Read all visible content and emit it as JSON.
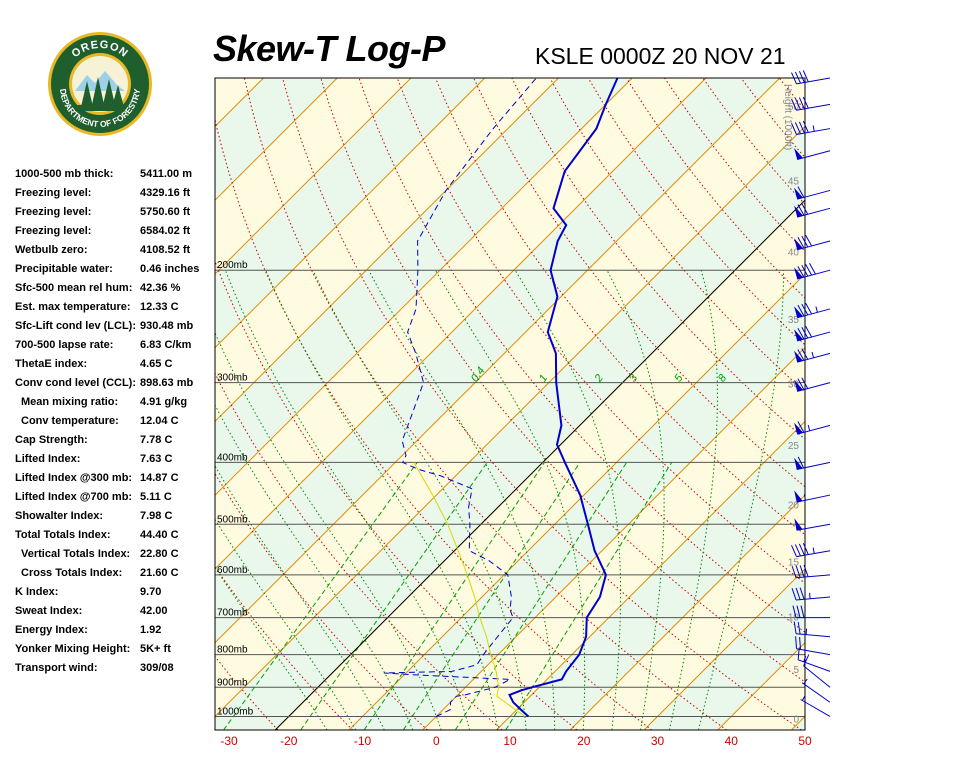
{
  "header": {
    "title": "Skew-T Log-P",
    "subtitle": "KSLE 0000Z 20 NOV 21"
  },
  "logo": {
    "top_text": "OREGON",
    "bottom_text": "DEPARTMENT OF FORESTRY",
    "colors": {
      "ring": "#1f5f2e",
      "gold": "#e8b923",
      "tree": "#1f5f2e",
      "sky": "#9fd0ea"
    }
  },
  "indices": [
    {
      "label": "1000-500 mb thick:",
      "value": "5411.00 m"
    },
    {
      "label": "Freezing level:",
      "value": "4329.16 ft"
    },
    {
      "label": "Freezing level:",
      "value": "5750.60 ft"
    },
    {
      "label": "Freezing level:",
      "value": "6584.02 ft"
    },
    {
      "label": "Wetbulb zero:",
      "value": "4108.52 ft"
    },
    {
      "label": "Precipitable water:",
      "value": "0.46 inches"
    },
    {
      "label": "Sfc-500 mean rel hum:",
      "value": "42.36 %"
    },
    {
      "label": "Est. max temperature:",
      "value": "12.33 C"
    },
    {
      "label": "Sfc-Lift cond lev (LCL):",
      "value": "930.48 mb"
    },
    {
      "label": "700-500 lapse rate:",
      "value": "6.83 C/km"
    },
    {
      "label": "ThetaE index:",
      "value": "4.65 C"
    },
    {
      "label": "Conv cond level (CCL):",
      "value": "898.63 mb"
    },
    {
      "label": "Mean mixing ratio:",
      "value": "4.91 g/kg",
      "sub": true
    },
    {
      "label": "Conv temperature:",
      "value": "12.04 C",
      "sub": true
    },
    {
      "label": "Cap Strength:",
      "value": "7.78 C"
    },
    {
      "label": "Lifted Index:",
      "value": "7.63 C"
    },
    {
      "label": "Lifted Index @300 mb:",
      "value": "14.87 C"
    },
    {
      "label": "Lifted Index @700 mb:",
      "value": "5.11 C"
    },
    {
      "label": "Showalter Index:",
      "value": "7.98 C"
    },
    {
      "label": "Total Totals Index:",
      "value": "44.40 C"
    },
    {
      "label": "Vertical Totals Index:",
      "value": "22.80 C",
      "sub": true
    },
    {
      "label": "Cross Totals Index:",
      "value": "21.60 C",
      "sub": true
    },
    {
      "label": "K Index:",
      "value": "9.70"
    },
    {
      "label": "Sweat Index:",
      "value": "42.00"
    },
    {
      "label": "Energy Index:",
      "value": "1.92"
    },
    {
      "label": "Yonker Mixing Height:",
      "value": "5K+ ft"
    },
    {
      "label": "Transport wind:",
      "value": "309/08"
    }
  ],
  "chart_data": {
    "type": "line",
    "chart_kind": "skew-t log-p",
    "x_axis": {
      "unit": "C",
      "ticks": [
        -30,
        -20,
        -10,
        0,
        10,
        20,
        30,
        40,
        50
      ],
      "range": [
        -30,
        50
      ]
    },
    "y_axis": {
      "scale": "log",
      "range_mb": [
        1050,
        100
      ],
      "pressure_labels": [
        "200mb",
        "300mb",
        "400mb",
        "500mb",
        "600mb",
        "700mb",
        "800mb",
        "900mb",
        "1000mb"
      ],
      "pressure_values": [
        200,
        300,
        400,
        500,
        600,
        700,
        800,
        900,
        1000
      ]
    },
    "height_axis": {
      "label": "Height (1000ft)",
      "ticks": [
        0,
        5,
        10,
        15,
        20,
        25,
        30,
        35,
        40,
        45,
        50
      ],
      "side": "right"
    },
    "mixing_ratio_labels": [
      "0.4",
      "1",
      "2",
      "3",
      "5",
      "8"
    ],
    "mixing_ratio_values": [
      0.4,
      1,
      2,
      3,
      5,
      8
    ],
    "grid": true,
    "colors": {
      "temperature": "#0000cc",
      "dewpoint": "#0000cc",
      "parcel": "#d8d800",
      "isotherm": "#e08a00",
      "dry_adiabat": "#cc0000",
      "moist_adiabat": "#008800",
      "mixing_ratio": "#00a000",
      "band_yellow": "#fffbe0",
      "band_green": "#e9f8ea",
      "isobar": "#555555",
      "axis_text": "#cc0000",
      "height_text": "#888888",
      "wind_barb": "#0000cc"
    },
    "series": [
      {
        "kind": "temperature",
        "style": "solid",
        "points": [
          [
            1000,
            12.5
          ],
          [
            975,
            10.5
          ],
          [
            950,
            8.5
          ],
          [
            925,
            7.0
          ],
          [
            910,
            8.0
          ],
          [
            900,
            9.0
          ],
          [
            875,
            12.0
          ],
          [
            850,
            11.5
          ],
          [
            800,
            11.0
          ],
          [
            750,
            9.5
          ],
          [
            700,
            7.0
          ],
          [
            650,
            6.0
          ],
          [
            600,
            3.8
          ],
          [
            550,
            -1.0
          ],
          [
            500,
            -5.5
          ],
          [
            450,
            -10.5
          ],
          [
            400,
            -17.0
          ],
          [
            375,
            -20.5
          ],
          [
            350,
            -22.5
          ],
          [
            300,
            -29.0
          ],
          [
            270,
            -33.0
          ],
          [
            250,
            -37.0
          ],
          [
            220,
            -40.5
          ],
          [
            200,
            -45.0
          ],
          [
            180,
            -48.0
          ],
          [
            170,
            -49.0
          ],
          [
            160,
            -53.0
          ],
          [
            140,
            -56.5
          ],
          [
            120,
            -58.0
          ],
          [
            110,
            -60.0
          ],
          [
            100,
            -62.0
          ]
        ]
      },
      {
        "kind": "dewpoint",
        "style": "dashed",
        "points": [
          [
            1000,
            0.0
          ],
          [
            975,
            1.0
          ],
          [
            950,
            0.0
          ],
          [
            930,
            0.0
          ],
          [
            925,
            1.0
          ],
          [
            900,
            4.0
          ],
          [
            875,
            5.0
          ],
          [
            860,
            -9.0
          ],
          [
            855,
            -13.0
          ],
          [
            850,
            -4.0
          ],
          [
            830,
            -1.5
          ],
          [
            800,
            -2.0
          ],
          [
            750,
            -2.5
          ],
          [
            700,
            -3.0
          ],
          [
            680,
            -4.5
          ],
          [
            650,
            -6.0
          ],
          [
            600,
            -9.5
          ],
          [
            570,
            -14.0
          ],
          [
            550,
            -18.0
          ],
          [
            500,
            -21.5
          ],
          [
            470,
            -24.0
          ],
          [
            440,
            -26.0
          ],
          [
            420,
            -32.0
          ],
          [
            410,
            -36.0
          ],
          [
            400,
            -39.0
          ],
          [
            390,
            -39.5
          ],
          [
            370,
            -42.0
          ],
          [
            340,
            -44.0
          ],
          [
            300,
            -47.0
          ],
          [
            270,
            -52.0
          ],
          [
            250,
            -56.0
          ],
          [
            230,
            -58.0
          ],
          [
            200,
            -63.0
          ],
          [
            180,
            -67.0
          ],
          [
            150,
            -70.0
          ],
          [
            120,
            -72.0
          ],
          [
            100,
            -73.0
          ]
        ]
      },
      {
        "kind": "parcel",
        "style": "solid",
        "points": [
          [
            1000,
            12.0
          ],
          [
            930,
            5.5
          ],
          [
            900,
            4.5
          ],
          [
            850,
            2.0
          ],
          [
            800,
            -1.0
          ],
          [
            750,
            -4.0
          ],
          [
            700,
            -7.5
          ],
          [
            650,
            -11.0
          ],
          [
            600,
            -15.0
          ],
          [
            550,
            -19.5
          ],
          [
            500,
            -24.5
          ],
          [
            450,
            -30.5
          ],
          [
            400,
            -37.5
          ]
        ]
      }
    ],
    "wind_barbs": [
      {
        "p": 1000,
        "dir": 300,
        "spd": 5
      },
      {
        "p": 950,
        "dir": 305,
        "spd": 8
      },
      {
        "p": 900,
        "dir": 309,
        "spd": 10
      },
      {
        "p": 850,
        "dir": 290,
        "spd": 15
      },
      {
        "p": 800,
        "dir": 280,
        "spd": 20
      },
      {
        "p": 750,
        "dir": 275,
        "spd": 25
      },
      {
        "p": 700,
        "dir": 270,
        "spd": 30
      },
      {
        "p": 650,
        "dir": 265,
        "spd": 35
      },
      {
        "p": 600,
        "dir": 265,
        "spd": 40
      },
      {
        "p": 550,
        "dir": 260,
        "spd": 45
      },
      {
        "p": 500,
        "dir": 260,
        "spd": 50
      },
      {
        "p": 450,
        "dir": 258,
        "spd": 55
      },
      {
        "p": 400,
        "dir": 258,
        "spd": 60
      },
      {
        "p": 350,
        "dir": 255,
        "spd": 65
      },
      {
        "p": 300,
        "dir": 255,
        "spd": 70
      },
      {
        "p": 270,
        "dir": 255,
        "spd": 75
      },
      {
        "p": 250,
        "dir": 255,
        "spd": 80
      },
      {
        "p": 230,
        "dir": 255,
        "spd": 85
      },
      {
        "p": 200,
        "dir": 255,
        "spd": 90
      },
      {
        "p": 180,
        "dir": 255,
        "spd": 80
      },
      {
        "p": 160,
        "dir": 255,
        "spd": 70
      },
      {
        "p": 150,
        "dir": 255,
        "spd": 60
      },
      {
        "p": 130,
        "dir": 255,
        "spd": 50
      },
      {
        "p": 120,
        "dir": 260,
        "spd": 45
      },
      {
        "p": 110,
        "dir": 260,
        "spd": 40
      },
      {
        "p": 100,
        "dir": 260,
        "spd": 40
      }
    ]
  }
}
